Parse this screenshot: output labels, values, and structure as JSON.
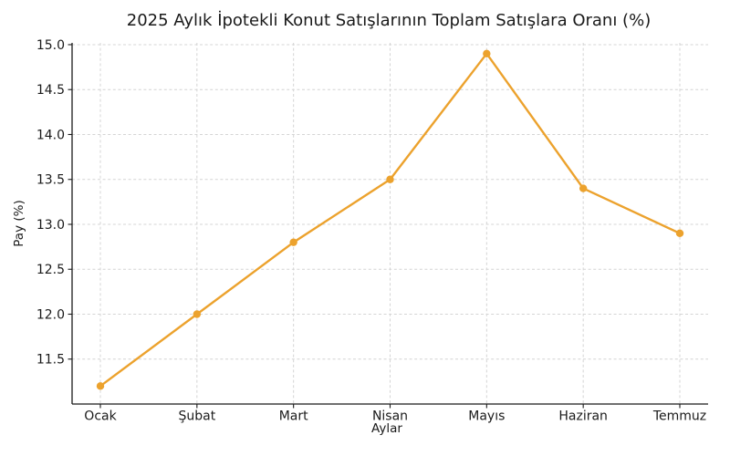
{
  "chart_data": {
    "type": "line",
    "title": "2025 Aylık İpotekli Konut Satışlarının Toplam Satışlara Oranı (%)",
    "xlabel": "Aylar",
    "ylabel": "Pay (%)",
    "categories": [
      "Ocak",
      "Şubat",
      "Mart",
      "Nisan",
      "Mayıs",
      "Haziran",
      "Temmuz"
    ],
    "values": [
      11.2,
      12.0,
      12.8,
      13.5,
      14.9,
      13.4,
      12.9
    ],
    "yticks": [
      11.5,
      12.0,
      12.5,
      13.0,
      13.5,
      14.0,
      14.5,
      15.0
    ],
    "ylim": [
      11.0,
      15.02
    ],
    "grid": true,
    "grid_style": "dashed",
    "legend_position": "none",
    "marker": "circle",
    "colors": {
      "line": "#ECA22D",
      "marker": "#ECA22D",
      "grid": "#d4d4d4",
      "axis": "#1a1a1a",
      "text": "#1a1a1a",
      "background": "#ffffff"
    }
  }
}
